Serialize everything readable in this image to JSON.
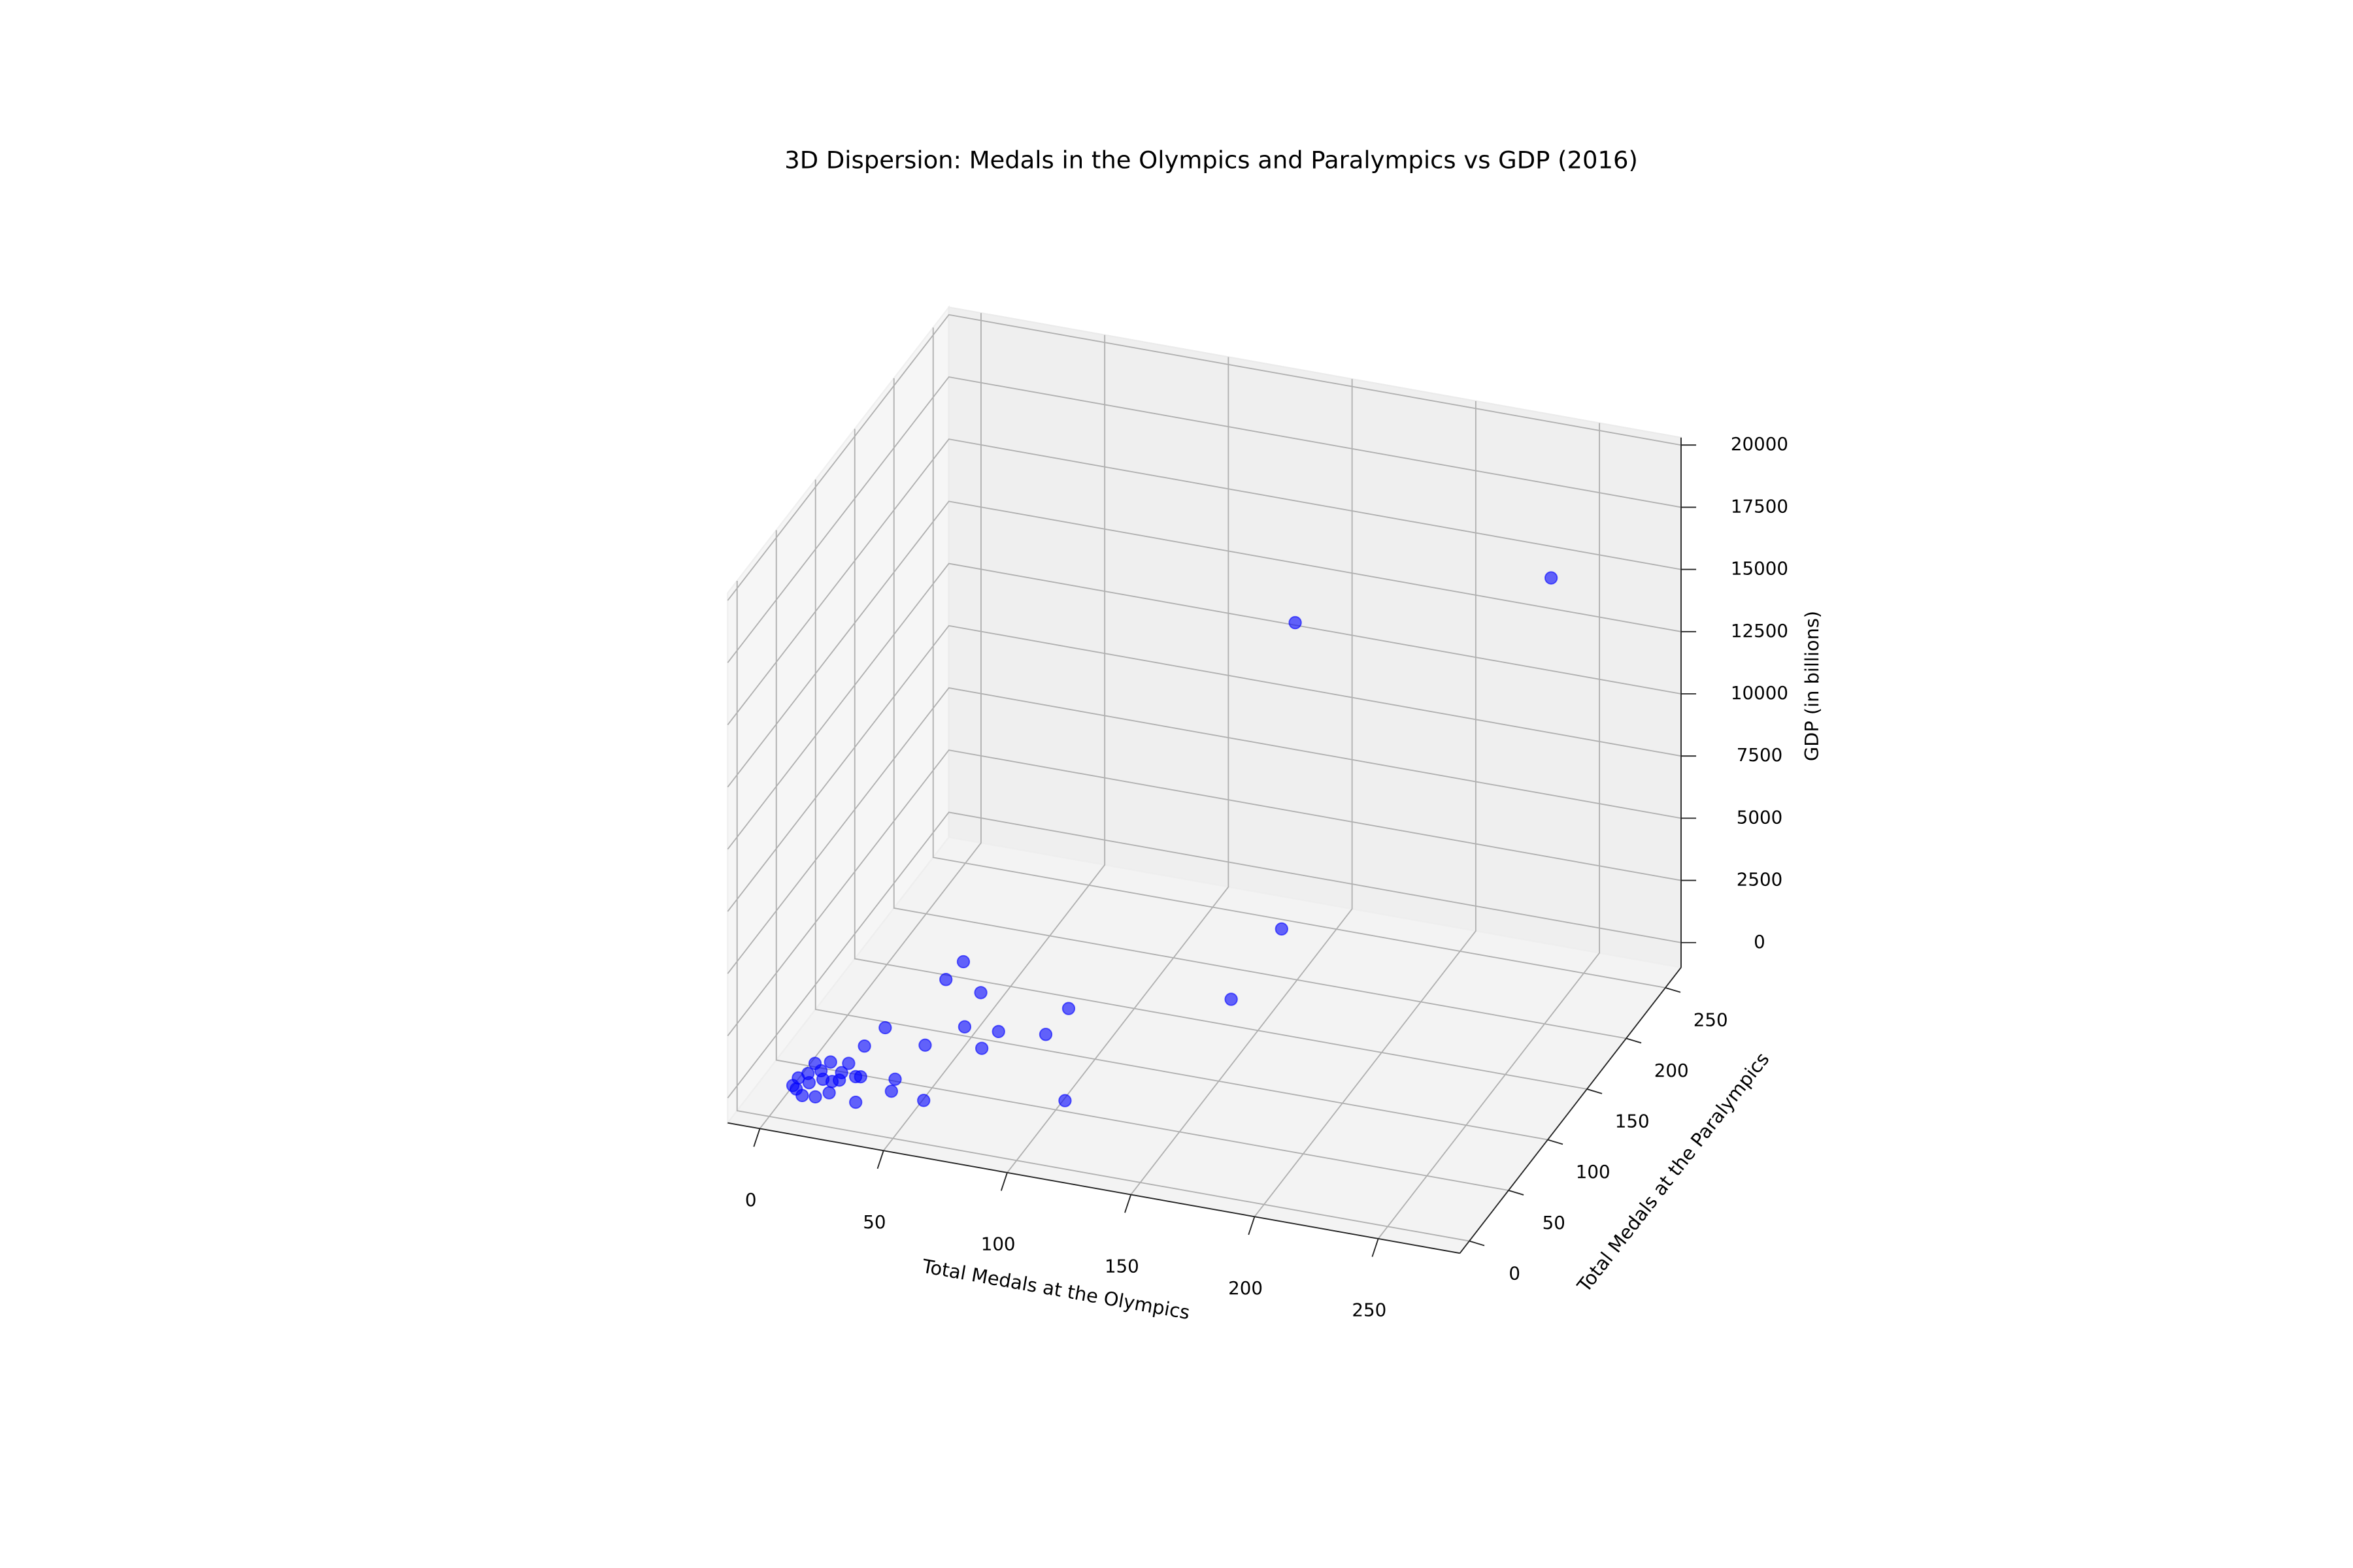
{
  "chart_data": {
    "type": "scatter3d",
    "title": "3D Dispersion: Medals in the Olympics and Paralympics vs GDP (2016)",
    "xlabel": "Total Medals at the Olympics",
    "ylabel": "Total Medals at the Paralympics",
    "zlabel": "GDP (in billions)",
    "x": [
      246,
      140,
      151,
      149,
      111,
      89,
      88,
      36,
      34,
      50,
      67,
      53,
      65,
      44,
      25,
      22,
      58,
      44,
      42,
      34,
      7,
      7,
      9,
      9,
      14,
      21,
      16,
      22,
      27,
      29,
      18,
      22,
      20,
      9,
      13,
      12,
      21,
      13
    ],
    "y": [
      221,
      229,
      177,
      119,
      27,
      101,
      75,
      134,
      118,
      112,
      81,
      82,
      66,
      60,
      69,
      52,
      14,
      17,
      28,
      3,
      8,
      15,
      21,
      30,
      34,
      35,
      18,
      20,
      25,
      25,
      2,
      7,
      17,
      6,
      1,
      13,
      26,
      25
    ],
    "z": [
      16000,
      12000,
      2000,
      1500,
      500,
      800,
      800,
      400,
      300,
      300,
      300,
      200,
      200,
      200,
      200,
      100,
      100,
      100,
      100,
      50,
      40,
      60,
      30,
      70,
      50,
      80,
      45,
      35,
      60,
      90,
      25,
      55,
      65,
      20,
      30,
      40,
      75,
      50
    ],
    "color": "#0000ff",
    "alpha": 0.6,
    "xlim": [
      -13,
      283
    ],
    "ylim": [
      -12,
      270
    ],
    "zlim": [
      -1000,
      20300
    ],
    "xticks": [
      0,
      50,
      100,
      150,
      200,
      250
    ],
    "yticks": [
      0,
      50,
      100,
      150,
      200,
      250
    ],
    "zticks": [
      0,
      2500,
      5000,
      7500,
      10000,
      12500,
      15000,
      17500,
      20000
    ],
    "grid": true
  }
}
